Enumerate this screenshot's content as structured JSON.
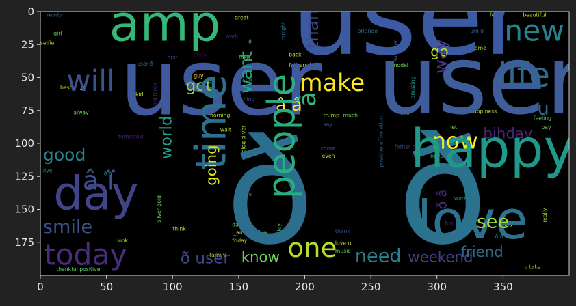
{
  "theme": {
    "figure_bg": "#222222",
    "plot_bg": "#000000",
    "frame": "#cfcfcf",
    "tick_label": "#e6e6e6"
  },
  "chart_data": {
    "type": "wordcloud",
    "title": "",
    "xlabel": "",
    "ylabel": "",
    "xlim": [
      0,
      400
    ],
    "ylim": [
      200,
      0
    ],
    "xticks": [
      0,
      50,
      100,
      150,
      200,
      250,
      300,
      350
    ],
    "yticks": [
      0,
      25,
      50,
      75,
      100,
      125,
      150,
      175
    ],
    "grid": false,
    "colormap": "viridis",
    "words": [
      {
        "text": "user",
        "x": 190,
        "y": 32,
        "size": 82,
        "color": "#3b5aa1"
      },
      {
        "text": "user",
        "x": 60,
        "y": 78,
        "size": 70,
        "color": "#3e5a9c"
      },
      {
        "text": "user",
        "x": 255,
        "y": 77,
        "size": 72,
        "color": "#3f5d9a"
      },
      {
        "text": "ð",
        "x": 140,
        "y": 175,
        "size": 110,
        "color": "#2c6e8e"
      },
      {
        "text": "ð",
        "x": 270,
        "y": 175,
        "size": 112,
        "color": "#2a728d"
      },
      {
        "text": "amp",
        "x": 52,
        "y": 22,
        "size": 38,
        "color": "#35b779"
      },
      {
        "text": "new",
        "x": 351,
        "y": 22,
        "size": 22,
        "color": "#26828e"
      },
      {
        "text": "life",
        "x": 346,
        "y": 57,
        "size": 26,
        "color": "#31688e"
      },
      {
        "text": "will",
        "x": 20,
        "y": 60,
        "size": 22,
        "color": "#3b528b"
      },
      {
        "text": "got",
        "x": 110,
        "y": 60,
        "size": 12,
        "color": "#90d743"
      },
      {
        "text": "want",
        "x": 160,
        "y": 62,
        "size": 13,
        "color": "#20a386",
        "vertical": true
      },
      {
        "text": "make",
        "x": 196,
        "y": 60,
        "size": 18,
        "color": "#fde725"
      },
      {
        "text": "thankful",
        "x": 210,
        "y": 28,
        "size": 13,
        "color": "#3e4a89",
        "vertical": true
      },
      {
        "text": "go",
        "x": 295,
        "y": 34,
        "size": 11,
        "color": "#b5de2b"
      },
      {
        "text": "way",
        "x": 307,
        "y": 47,
        "size": 13,
        "color": "#463480",
        "vertical": true
      },
      {
        "text": "u",
        "x": 376,
        "y": 78,
        "size": 14,
        "color": "#31688e"
      },
      {
        "text": "â â",
        "x": 178,
        "y": 75,
        "size": 13,
        "color": "#fde725"
      },
      {
        "text": "â",
        "x": 208,
        "y": 72,
        "size": 18,
        "color": "#35b779",
        "vertical": true
      },
      {
        "text": "now",
        "x": 296,
        "y": 104,
        "size": 17,
        "color": "#fde725"
      },
      {
        "text": "bihday",
        "x": 335,
        "y": 96,
        "size": 11,
        "color": "#482475"
      },
      {
        "text": "happy",
        "x": 280,
        "y": 118,
        "size": 40,
        "color": "#1f9a8a"
      },
      {
        "text": "love",
        "x": 285,
        "y": 172,
        "size": 40,
        "color": "#2c728e"
      },
      {
        "text": "time",
        "x": 140,
        "y": 120,
        "size": 32,
        "color": "#2d708e",
        "vertical": true
      },
      {
        "text": "people",
        "x": 192,
        "y": 142,
        "size": 28,
        "color": "#29af7f",
        "vertical": true
      },
      {
        "text": "good",
        "x": 2,
        "y": 113,
        "size": 13,
        "color": "#26828e"
      },
      {
        "text": "â ï",
        "x": 32,
        "y": 135,
        "size": 20,
        "color": "#3b528b"
      },
      {
        "text": "day",
        "x": 10,
        "y": 150,
        "size": 35,
        "color": "#414487"
      },
      {
        "text": "world",
        "x": 99,
        "y": 112,
        "size": 12,
        "color": "#1f9e89",
        "vertical": true
      },
      {
        "text": "going",
        "x": 133,
        "y": 132,
        "size": 11,
        "color": "#d8e219",
        "vertical": true
      },
      {
        "text": "smile",
        "x": 2,
        "y": 168,
        "size": 14,
        "color": "#3b528b"
      },
      {
        "text": "today",
        "x": 3,
        "y": 192,
        "size": 22,
        "color": "#472d7b"
      },
      {
        "text": "ð user",
        "x": 106,
        "y": 191,
        "size": 12,
        "color": "#3e4a89"
      },
      {
        "text": "know",
        "x": 152,
        "y": 190,
        "size": 11,
        "color": "#6ece58"
      },
      {
        "text": "one",
        "x": 187,
        "y": 186,
        "size": 20,
        "color": "#b5de2b"
      },
      {
        "text": "need",
        "x": 238,
        "y": 190,
        "size": 14,
        "color": "#26828e"
      },
      {
        "text": "weekend",
        "x": 278,
        "y": 190,
        "size": 11,
        "color": "#433e85"
      },
      {
        "text": "friend",
        "x": 318,
        "y": 186,
        "size": 11,
        "color": "#31688e"
      },
      {
        "text": "see",
        "x": 330,
        "y": 164,
        "size": 14,
        "color": "#a0da39"
      },
      {
        "text": "ð â",
        "x": 307,
        "y": 150,
        "size": 10,
        "color": "#482878",
        "vertical": true
      }
    ],
    "small_words": [
      {
        "text": "ready",
        "x": 5,
        "y": 4,
        "size": 4,
        "color": "#31688e"
      },
      {
        "text": "girl",
        "x": 10,
        "y": 18,
        "size": 4,
        "color": "#6ece58"
      },
      {
        "text": "selfie",
        "x": 0,
        "y": 25,
        "size": 4,
        "color": "#b5de2b"
      },
      {
        "text": "great",
        "x": 147,
        "y": 6,
        "size": 4,
        "color": "#aadc32"
      },
      {
        "text": "work",
        "x": 140,
        "y": 20,
        "size": 4,
        "color": "#482475"
      },
      {
        "text": "i ð",
        "x": 155,
        "y": 24,
        "size": 4,
        "color": "#5ec962"
      },
      {
        "text": "first",
        "x": 96,
        "y": 36,
        "size": 4,
        "color": "#3e4a89"
      },
      {
        "text": "show",
        "x": 116,
        "y": 34,
        "size": 4,
        "color": "#440154"
      },
      {
        "text": "take",
        "x": 150,
        "y": 36,
        "size": 4,
        "color": "#8fd744"
      },
      {
        "text": "sta",
        "x": 155,
        "y": 42,
        "size": 4,
        "color": "#31688e"
      },
      {
        "text": "user ð",
        "x": 73,
        "y": 41,
        "size": 4,
        "color": "#31688e"
      },
      {
        "text": "guy",
        "x": 116,
        "y": 50,
        "size": 4,
        "color": "#ffd92f"
      },
      {
        "text": "tonight",
        "x": 185,
        "y": 22,
        "size": 4,
        "color": "#26828e",
        "vertical": true
      },
      {
        "text": "orlando",
        "x": 240,
        "y": 16,
        "size": 4,
        "color": "#31688e"
      },
      {
        "text": "back",
        "x": 188,
        "y": 34,
        "size": 4,
        "color": "#b5de2b"
      },
      {
        "text": "fathersday",
        "x": 188,
        "y": 42,
        "size": 4,
        "color": "#aadc32"
      },
      {
        "text": "model",
        "x": 266,
        "y": 42,
        "size": 4,
        "color": "#6ece58"
      },
      {
        "text": "summer",
        "x": 270,
        "y": 38,
        "size": 4,
        "color": "#31688e",
        "vertical": true
      },
      {
        "text": "urð ð",
        "x": 325,
        "y": 16,
        "size": 4,
        "color": "#31688e"
      },
      {
        "text": "home",
        "x": 326,
        "y": 29,
        "size": 4,
        "color": "#b5de2b"
      },
      {
        "text": "feel",
        "x": 340,
        "y": 4,
        "size": 4,
        "color": "#aadc32"
      },
      {
        "text": "beautiful",
        "x": 365,
        "y": 4,
        "size": 4,
        "color": "#d8e219"
      },
      {
        "text": "best",
        "x": 15,
        "y": 59,
        "size": 4,
        "color": "#d8e219"
      },
      {
        "text": "fun",
        "x": 33,
        "y": 60,
        "size": 4,
        "color": "#d8e219",
        "vertical": true
      },
      {
        "text": "kid",
        "x": 72,
        "y": 64,
        "size": 4,
        "color": "#b5de2b"
      },
      {
        "text": "alway",
        "x": 25,
        "y": 78,
        "size": 4,
        "color": "#6ece58"
      },
      {
        "text": "gold forex",
        "x": 88,
        "y": 74,
        "size": 4,
        "color": "#482878",
        "vertical": true
      },
      {
        "text": "still",
        "x": 153,
        "y": 53,
        "size": 4,
        "color": "#5ec962"
      },
      {
        "text": "thing",
        "x": 152,
        "y": 68,
        "size": 4,
        "color": "#3e4a89"
      },
      {
        "text": "morning",
        "x": 127,
        "y": 80,
        "size": 4,
        "color": "#b5de2b"
      },
      {
        "text": "wait",
        "x": 136,
        "y": 91,
        "size": 4,
        "color": "#aadc32"
      },
      {
        "text": "tomorrow",
        "x": 59,
        "y": 96,
        "size": 4,
        "color": "#482475"
      },
      {
        "text": "trump",
        "x": 214,
        "y": 80,
        "size": 4,
        "color": "#aadc32"
      },
      {
        "text": "say",
        "x": 214,
        "y": 87,
        "size": 4,
        "color": "#31688e"
      },
      {
        "text": "much",
        "x": 229,
        "y": 80,
        "size": 4,
        "color": "#6ece58"
      },
      {
        "text": "year",
        "x": 272,
        "y": 78,
        "size": 4,
        "color": "#aadc32"
      },
      {
        "text": "amazing",
        "x": 283,
        "y": 66,
        "size": 4,
        "color": "#21918c",
        "vertical": true
      },
      {
        "text": "happiness",
        "x": 325,
        "y": 77,
        "size": 4,
        "color": "#aadc32"
      },
      {
        "text": "feeling",
        "x": 373,
        "y": 82,
        "size": 4,
        "color": "#5ec962"
      },
      {
        "text": "pay",
        "x": 379,
        "y": 89,
        "size": 4,
        "color": "#6ece58"
      },
      {
        "text": "let",
        "x": 310,
        "y": 89,
        "size": 4,
        "color": "#8fd744"
      },
      {
        "text": "blog silver",
        "x": 155,
        "y": 107,
        "size": 4,
        "color": "#aadc32",
        "vertical": true
      },
      {
        "text": "positive affirmation",
        "x": 259,
        "y": 118,
        "size": 4,
        "color": "#31688e",
        "vertical": true
      },
      {
        "text": "father day",
        "x": 268,
        "y": 104,
        "size": 4,
        "color": "#433e85"
      },
      {
        "text": "come",
        "x": 212,
        "y": 105,
        "size": 4,
        "color": "#433e85"
      },
      {
        "text": "even",
        "x": 213,
        "y": 111,
        "size": 4,
        "color": "#aadc32"
      },
      {
        "text": "never",
        "x": 295,
        "y": 111,
        "size": 4,
        "color": "#35b779"
      },
      {
        "text": "live",
        "x": 2,
        "y": 122,
        "size": 4,
        "color": "#21918c"
      },
      {
        "text": "ð â",
        "x": 48,
        "y": 124,
        "size": 4,
        "color": "#21918c"
      },
      {
        "text": "hope",
        "x": 150,
        "y": 140,
        "size": 4,
        "color": "#31688e"
      },
      {
        "text": "silver gold",
        "x": 91,
        "y": 160,
        "size": 4,
        "color": "#6ece58",
        "vertical": true
      },
      {
        "text": "work",
        "x": 313,
        "y": 143,
        "size": 4,
        "color": "#21918c"
      },
      {
        "text": "fun",
        "x": 306,
        "y": 162,
        "size": 4,
        "color": "#482878"
      },
      {
        "text": "sad",
        "x": 350,
        "y": 163,
        "size": 4,
        "color": "#d8e219"
      },
      {
        "text": "really",
        "x": 383,
        "y": 160,
        "size": 4,
        "color": "#aadc32",
        "vertical": true
      },
      {
        "text": "think",
        "x": 100,
        "y": 166,
        "size": 4,
        "color": "#aadc32"
      },
      {
        "text": "dad",
        "x": 145,
        "y": 163,
        "size": 4,
        "color": "#6ece58"
      },
      {
        "text": "i_am positive",
        "x": 145,
        "y": 169,
        "size": 4,
        "color": "#b5de2b"
      },
      {
        "text": "friday",
        "x": 145,
        "y": 175,
        "size": 4,
        "color": "#aadc32"
      },
      {
        "text": "sunday",
        "x": 182,
        "y": 175,
        "size": 4,
        "color": "#5ec962",
        "vertical": true
      },
      {
        "text": "thank",
        "x": 223,
        "y": 168,
        "size": 4,
        "color": "#3e4a89"
      },
      {
        "text": "love u",
        "x": 223,
        "y": 177,
        "size": 4,
        "color": "#b5de2b"
      },
      {
        "text": "music",
        "x": 223,
        "y": 183,
        "size": 4,
        "color": "#5ec962"
      },
      {
        "text": "ð ð",
        "x": 344,
        "y": 172,
        "size": 4,
        "color": "#21918c"
      },
      {
        "text": "look",
        "x": 58,
        "y": 175,
        "size": 4,
        "color": "#b5de2b"
      },
      {
        "text": "family",
        "x": 128,
        "y": 186,
        "size": 4,
        "color": "#aadc32"
      },
      {
        "text": "thankful positive",
        "x": 12,
        "y": 197,
        "size": 4,
        "color": "#5ec962"
      },
      {
        "text": "u take",
        "x": 366,
        "y": 195,
        "size": 4,
        "color": "#aadc32"
      }
    ]
  }
}
